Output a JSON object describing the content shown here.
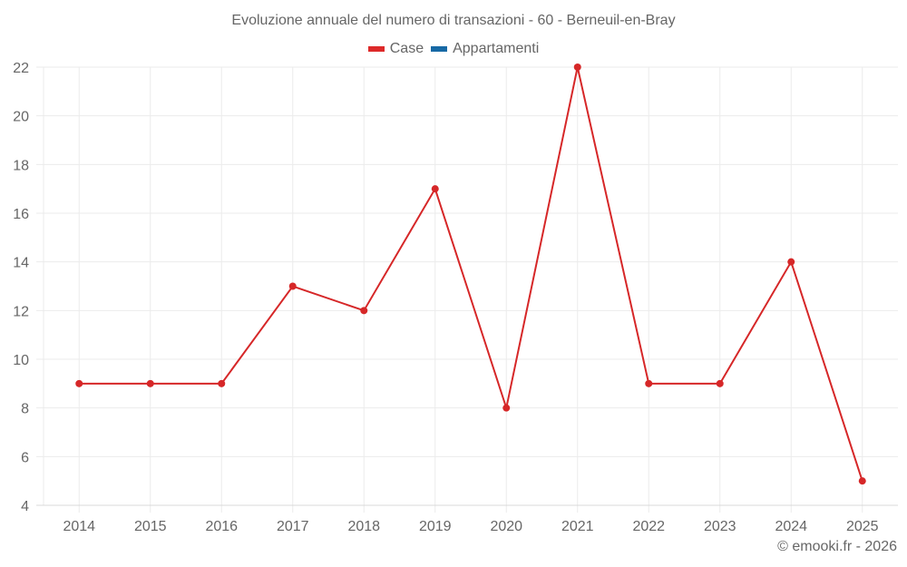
{
  "title": "Evoluzione annuale del numero di transazioni - 60 - Berneuil-en-Bray",
  "legend": [
    {
      "label": "Case",
      "color": "#dd2a2a"
    },
    {
      "label": "Appartamenti",
      "color": "#1769a5"
    }
  ],
  "copyright": "© emooki.fr - 2026",
  "colors": {
    "line": "#d62728",
    "grid": "#ebebeb",
    "axis": "#d9d9d9",
    "text": "#666666"
  },
  "chart_data": {
    "type": "line",
    "title": "Evoluzione annuale del numero di transazioni - 60 - Berneuil-en-Bray",
    "xlabel": "",
    "ylabel": "",
    "categories": [
      "2014",
      "2015",
      "2016",
      "2017",
      "2018",
      "2019",
      "2020",
      "2021",
      "2022",
      "2023",
      "2024",
      "2025"
    ],
    "series": [
      {
        "name": "Case",
        "color": "#dd2a2a",
        "values": [
          9,
          9,
          9,
          13,
          12,
          17,
          8,
          22,
          9,
          9,
          14,
          5
        ]
      },
      {
        "name": "Appartamenti",
        "color": "#1769a5",
        "values": []
      }
    ],
    "ylim": [
      4,
      22
    ],
    "yticks": [
      4,
      6,
      8,
      10,
      12,
      14,
      16,
      18,
      20,
      22
    ],
    "grid": true,
    "legend_position": "top"
  }
}
